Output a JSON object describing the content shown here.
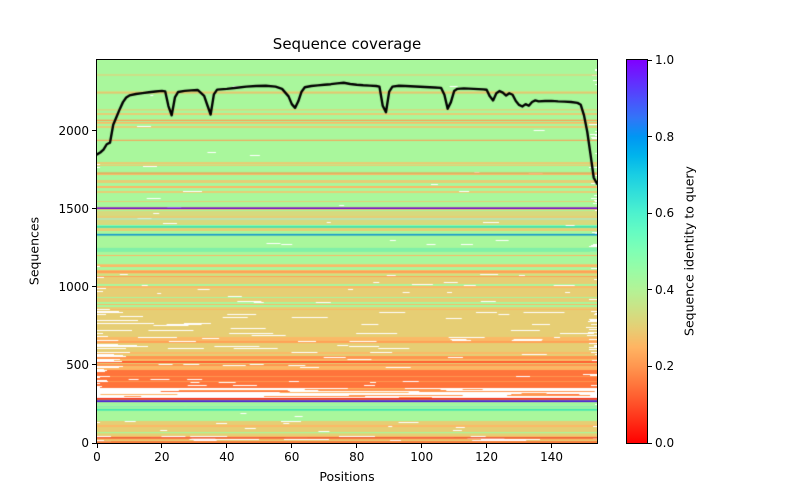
{
  "chart_data": {
    "type": "heatmap",
    "title": "Sequence coverage",
    "xlabel": "Positions",
    "ylabel": "Sequences",
    "xlim": [
      0,
      154
    ],
    "ylim": [
      0,
      2455
    ],
    "x_ticks": [
      0,
      20,
      40,
      60,
      80,
      100,
      120,
      140
    ],
    "y_ticks": [
      0,
      500,
      1000,
      1500,
      2000
    ],
    "grid": false,
    "colorbar": {
      "label": "Sequence identity to query",
      "tick_labels": [
        "0.0",
        "0.2",
        "0.4",
        "0.6",
        "0.8",
        "1.0"
      ],
      "tick_values": [
        0,
        0.2,
        0.4,
        0.6,
        0.8,
        1.0
      ],
      "colormap": "rainbow_r",
      "stops": [
        [
          0,
          "#ff0000"
        ],
        [
          0.05,
          "#ff2814"
        ],
        [
          0.1,
          "#ff4f28"
        ],
        [
          0.15,
          "#ff743b"
        ],
        [
          0.2,
          "#ff964f"
        ],
        [
          0.25,
          "#ffb462"
        ],
        [
          0.3,
          "#e6ce74"
        ],
        [
          0.35,
          "#cce285"
        ],
        [
          0.4,
          "#b3f396"
        ],
        [
          0.45,
          "#99fca5"
        ],
        [
          0.5,
          "#80ffb4"
        ],
        [
          0.55,
          "#66fcc2"
        ],
        [
          0.6,
          "#4df2ce"
        ],
        [
          0.65,
          "#33e0d9"
        ],
        [
          0.7,
          "#19cee3"
        ],
        [
          0.75,
          "#00b4ec"
        ],
        [
          0.8,
          "#0096f3"
        ],
        [
          0.85,
          "#3374f8"
        ],
        [
          0.9,
          "#4d4ffc"
        ],
        [
          0.95,
          "#6628fe"
        ],
        [
          1,
          "#8000ff"
        ]
      ]
    },
    "coverage_line": {
      "color": "#000000",
      "width": 2.4,
      "points": [
        [
          0,
          1850
        ],
        [
          1,
          1862
        ],
        [
          2,
          1880
        ],
        [
          3,
          1915
        ],
        [
          4,
          1925
        ],
        [
          5,
          2040
        ],
        [
          6,
          2090
        ],
        [
          7,
          2140
        ],
        [
          8,
          2185
        ],
        [
          9,
          2215
        ],
        [
          10,
          2228
        ],
        [
          12,
          2237
        ],
        [
          14,
          2243
        ],
        [
          16,
          2248
        ],
        [
          18,
          2253
        ],
        [
          20,
          2257
        ],
        [
          21,
          2254
        ],
        [
          22,
          2160
        ],
        [
          23,
          2100
        ],
        [
          24,
          2215
        ],
        [
          25,
          2250
        ],
        [
          27,
          2257
        ],
        [
          29,
          2260
        ],
        [
          31,
          2263
        ],
        [
          33,
          2225
        ],
        [
          34,
          2165
        ],
        [
          35,
          2105
        ],
        [
          36,
          2235
        ],
        [
          37,
          2265
        ],
        [
          40,
          2270
        ],
        [
          43,
          2277
        ],
        [
          46,
          2284
        ],
        [
          49,
          2288
        ],
        [
          52,
          2290
        ],
        [
          55,
          2284
        ],
        [
          57,
          2270
        ],
        [
          59,
          2222
        ],
        [
          60,
          2172
        ],
        [
          61,
          2148
        ],
        [
          62,
          2190
        ],
        [
          63,
          2252
        ],
        [
          64,
          2280
        ],
        [
          66,
          2288
        ],
        [
          68,
          2292
        ],
        [
          70,
          2296
        ],
        [
          72,
          2300
        ],
        [
          74,
          2305
        ],
        [
          76,
          2309
        ],
        [
          78,
          2301
        ],
        [
          80,
          2296
        ],
        [
          82,
          2293
        ],
        [
          84,
          2291
        ],
        [
          86,
          2288
        ],
        [
          87,
          2284
        ],
        [
          88,
          2162
        ],
        [
          89,
          2120
        ],
        [
          90,
          2252
        ],
        [
          91,
          2284
        ],
        [
          93,
          2290
        ],
        [
          95,
          2288
        ],
        [
          98,
          2285
        ],
        [
          101,
          2282
        ],
        [
          104,
          2279
        ],
        [
          106,
          2276
        ],
        [
          107,
          2232
        ],
        [
          108,
          2142
        ],
        [
          109,
          2185
        ],
        [
          110,
          2256
        ],
        [
          111,
          2270
        ],
        [
          113,
          2273
        ],
        [
          116,
          2270
        ],
        [
          119,
          2267
        ],
        [
          120,
          2264
        ],
        [
          121,
          2222
        ],
        [
          122,
          2196
        ],
        [
          123,
          2242
        ],
        [
          124,
          2256
        ],
        [
          125,
          2246
        ],
        [
          126,
          2227
        ],
        [
          127,
          2242
        ],
        [
          128,
          2232
        ],
        [
          129,
          2192
        ],
        [
          130,
          2167
        ],
        [
          131,
          2157
        ],
        [
          132,
          2172
        ],
        [
          133,
          2162
        ],
        [
          134,
          2186
        ],
        [
          135,
          2196
        ],
        [
          136,
          2190
        ],
        [
          138,
          2192
        ],
        [
          140,
          2193
        ],
        [
          142,
          2190
        ],
        [
          144,
          2188
        ],
        [
          146,
          2186
        ],
        [
          148,
          2180
        ],
        [
          149,
          2168
        ],
        [
          150,
          2100
        ],
        [
          151,
          1995
        ],
        [
          152,
          1850
        ],
        [
          153,
          1700
        ],
        [
          154,
          1662
        ]
      ]
    },
    "heatmap": {
      "background": "#ffffff",
      "seed": 7,
      "bands": [
        {
          "from": 2455,
          "to": 2060,
          "palette": [
            [
              0.42,
              0.87
            ],
            [
              0.3,
              0.06
            ],
            [
              0.26,
              0.05
            ],
            [
              0.35,
              0.02
            ]
          ],
          "gp": 0.06,
          "gn": [
            1,
            2
          ],
          "gl": [
            3,
            12
          ],
          "lp": 0.02,
          "ll": [
            1,
            4
          ],
          "rp": 0.06,
          "rl": [
            2,
            6
          ]
        },
        {
          "from": 2060,
          "to": 1660,
          "palette": [
            [
              0.42,
              0.72
            ],
            [
              0.3,
              0.12
            ],
            [
              0.26,
              0.08
            ],
            [
              0.22,
              0.05
            ],
            [
              0.35,
              0.03
            ]
          ],
          "gp": 0.12,
          "gn": [
            1,
            2
          ],
          "gl": [
            3,
            14
          ],
          "lp": 0.05,
          "ll": [
            1,
            4
          ],
          "rp": 0.2,
          "rl": [
            2,
            8
          ]
        },
        {
          "from": 1660,
          "to": 1510,
          "palette": [
            [
              0.42,
              0.55
            ],
            [
              0.3,
              0.2
            ],
            [
              0.33,
              0.12
            ],
            [
              0.26,
              0.08
            ],
            [
              0.22,
              0.05
            ]
          ],
          "gp": 0.16,
          "gn": [
            1,
            2
          ],
          "gl": [
            4,
            20
          ],
          "lp": 0.06,
          "ll": [
            1,
            4
          ],
          "rp": 0.2,
          "rl": [
            2,
            8
          ]
        },
        {
          "from": 1510,
          "to": 1395,
          "palette": [
            [
              0.33,
              0.35
            ],
            [
              0.42,
              0.28
            ],
            [
              0.3,
              0.22
            ],
            [
              0.5,
              0.08
            ],
            [
              0.26,
              0.07
            ]
          ],
          "gp": 0.12,
          "gn": [
            1,
            2
          ],
          "gl": [
            4,
            16
          ],
          "lp": 0.05,
          "ll": [
            1,
            4
          ],
          "rp": 0.15,
          "rl": [
            2,
            7
          ]
        },
        {
          "from": 1395,
          "to": 1295,
          "palette": [
            [
              0.42,
              0.45
            ],
            [
              0.33,
              0.25
            ],
            [
              0.3,
              0.18
            ],
            [
              0.5,
              0.07
            ],
            [
              0.26,
              0.05
            ]
          ],
          "gp": 0.1,
          "gn": [
            1,
            2
          ],
          "gl": [
            4,
            14
          ],
          "lp": 0.05,
          "ll": [
            1,
            4
          ],
          "rp": 0.15,
          "rl": [
            2,
            7
          ]
        },
        {
          "from": 1295,
          "to": 1085,
          "palette": [
            [
              0.42,
              0.4
            ],
            [
              0.3,
              0.25
            ],
            [
              0.26,
              0.15
            ],
            [
              0.22,
              0.12
            ],
            [
              0.35,
              0.08
            ]
          ],
          "gp": 0.2,
          "gn": [
            1,
            3
          ],
          "gl": [
            4,
            18
          ],
          "lp": 0.08,
          "ll": [
            1,
            6
          ],
          "rp": 0.22,
          "rl": [
            2,
            9
          ]
        },
        {
          "from": 1085,
          "to": 845,
          "palette": [
            [
              0.3,
              0.4
            ],
            [
              0.26,
              0.22
            ],
            [
              0.22,
              0.14
            ],
            [
              0.42,
              0.16
            ],
            [
              0.35,
              0.08
            ]
          ],
          "gp": 0.3,
          "gn": [
            1,
            3
          ],
          "gl": [
            4,
            22
          ],
          "lp": 0.15,
          "ll": [
            2,
            10
          ],
          "rp": 0.2,
          "rl": [
            2,
            9
          ]
        },
        {
          "from": 845,
          "to": 565,
          "palette": [
            [
              0.3,
              0.45
            ],
            [
              0.26,
              0.22
            ],
            [
              0.22,
              0.15
            ],
            [
              0.42,
              0.1
            ],
            [
              0.18,
              0.08
            ]
          ],
          "gp": 0.5,
          "gn": [
            1,
            3
          ],
          "gl": [
            6,
            45
          ],
          "lp": 0.35,
          "ll": [
            3,
            60
          ],
          "rp": 0.25,
          "rl": [
            2,
            12
          ]
        },
        {
          "from": 565,
          "to": 480,
          "palette": [
            [
              0.2,
              0.4
            ],
            [
              0.26,
              0.22
            ],
            [
              0.3,
              0.18
            ],
            [
              0.12,
              0.1
            ],
            [
              0.42,
              0.1
            ]
          ],
          "gp": 0.45,
          "gn": [
            1,
            3
          ],
          "gl": [
            5,
            30
          ],
          "lp": 0.4,
          "ll": [
            2,
            30
          ],
          "rp": 0.15,
          "rl": [
            2,
            8
          ]
        },
        {
          "from": 480,
          "to": 352,
          "palette": [
            [
              0.15,
              0.4
            ],
            [
              0.2,
              0.32
            ],
            [
              0.25,
              0.14
            ],
            [
              0.1,
              0.08
            ],
            [
              0.3,
              0.06
            ]
          ],
          "gp": 0.35,
          "gn": [
            1,
            3
          ],
          "gl": [
            5,
            25
          ],
          "lp": 0.5,
          "ll": [
            3,
            14
          ],
          "rp": 0.15,
          "rl": [
            2,
            8
          ]
        },
        {
          "from": 352,
          "to": 287,
          "sparse": true,
          "palette": [
            [
              0.2,
              0.55
            ],
            [
              0.25,
              0.3
            ],
            [
              0.15,
              0.15
            ]
          ],
          "sn": [
            1,
            3
          ],
          "sl": [
            15,
            130
          ]
        },
        {
          "from": 287,
          "to": 150,
          "palette": [
            [
              0.42,
              0.56
            ],
            [
              0.45,
              0.16
            ],
            [
              0.38,
              0.12
            ],
            [
              0.55,
              0.06
            ],
            [
              0.33,
              0.06
            ],
            [
              0.3,
              0.04
            ]
          ],
          "gp": 0.05,
          "gn": [
            1,
            1
          ],
          "gl": [
            3,
            10
          ],
          "lp": 0.02,
          "ll": [
            1,
            3
          ],
          "rp": 0.04,
          "rl": [
            1,
            4
          ]
        },
        {
          "from": 150,
          "to": 48,
          "palette": [
            [
              0.3,
              0.42
            ],
            [
              0.33,
              0.25
            ],
            [
              0.26,
              0.12
            ],
            [
              0.42,
              0.13
            ],
            [
              0.22,
              0.08
            ]
          ],
          "gp": 0.28,
          "gn": [
            1,
            2
          ],
          "gl": [
            4,
            20
          ],
          "lp": 0.12,
          "ll": [
            1,
            5
          ],
          "rp": 0.1,
          "rl": [
            2,
            6
          ]
        },
        {
          "from": 48,
          "to": 0,
          "palette": [
            [
              0.22,
              0.45
            ],
            [
              0.26,
              0.25
            ],
            [
              0.3,
              0.15
            ],
            [
              0.42,
              0.15
            ]
          ],
          "gp": 0.6,
          "gn": [
            1,
            4
          ],
          "gl": [
            8,
            60
          ],
          "lp": 0.35,
          "ll": [
            3,
            20
          ],
          "rp": 0.1,
          "rl": [
            2,
            8
          ]
        }
      ],
      "marker_rows": [
        {
          "seq": 2359,
          "color": "#e8cf75",
          "h": 1.1
        },
        {
          "seq": 2244,
          "color": "#f4b863",
          "h": 1.1
        },
        {
          "seq": 2135,
          "color": "#e8cf75",
          "h": 1.1
        },
        {
          "seq": 2068,
          "color": "#f9a455",
          "h": 1.4
        },
        {
          "seq": 1940,
          "color": "#f4a85c",
          "h": 1.2
        },
        {
          "seq": 1730,
          "color": "#f49b50",
          "h": 1.3
        },
        {
          "seq": 1505,
          "color": "#6a0ad0",
          "h": 1.6
        },
        {
          "seq": 1436,
          "color": "#a8ecd0",
          "h": 1.2
        },
        {
          "seq": 1385,
          "color": "#3fe2b0",
          "h": 1.7
        },
        {
          "seq": 1335,
          "color": "#1898cc",
          "h": 1.7
        },
        {
          "seq": 1238,
          "color": "#80f0a8",
          "h": 4
        },
        {
          "seq": 283,
          "color": "#f83018",
          "h": 1.8
        },
        {
          "seq": 268,
          "color": "#4812d8",
          "h": 1.8
        },
        {
          "seq": 232,
          "color": "#8cf0b0",
          "h": 1.5
        },
        {
          "seq": 213,
          "color": "#3fe8b0",
          "h": 1.8
        },
        {
          "seq": 33,
          "color": "#f25530",
          "h": 1.5
        },
        {
          "seq": 5,
          "color": "#f37a3a",
          "h": 2
        }
      ]
    }
  }
}
